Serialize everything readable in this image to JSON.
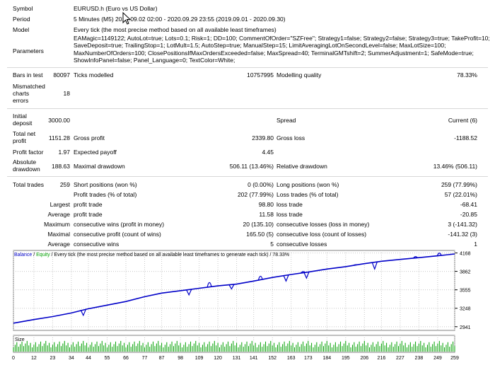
{
  "header": {
    "symbol_label": "Symbol",
    "symbol_value": "EURUSD.h (Euro vs US Dollar)",
    "period_label": "Period",
    "period_value": "5 Minutes (M5) 2019.09.02 02:00 - 2020.09.29 23:55 (2019.09.01 - 2020.09.30)",
    "model_label": "Model",
    "model_value": "Every tick (the most precise method based on all available least timeframes)",
    "parameters_label": "Parameters",
    "parameters_value": "EAMagic=1149122; AutoLot=true; Lots=0.1; Risk=1; DD=100; CommentOfOrder=\"SZFree\"; Strategy1=false; Strategy2=false; Strategy3=true; TakeProfit=10; SaveDeposit=true; TrailingStop=1; LotMult=1.5; AutoStep=true; ManualStep=15; LimitAveragingLotOnSecondLevel=false; MaxLotSize=100; MaxNumberOfOrders=100; ClosePositionsIfMaxOrdersExceeded=false; MaxSpread=40; TerminalGMTshift=2; SummerAdjustment=1; SafeMode=true; ShowInfoPanel=false; Panel_Language=0; TextColor=White;"
  },
  "stats": {
    "bars_label": "Bars in test",
    "bars_value": "80097",
    "ticks_label": "Ticks modelled",
    "ticks_value": "10757995",
    "quality_label": "Modelling quality",
    "quality_value": "78.33%",
    "mismatch_label": "Mismatched\ncharts\nerrors",
    "mismatch_value": "18",
    "initial_label": "Initial\ndeposit",
    "initial_value": "3000.00",
    "spread_label": "Spread",
    "spread_value": "Current (6)",
    "netprofit_label": "Total net\nprofit",
    "netprofit_value": "1151.28",
    "grossprofit_label": "Gross profit",
    "grossprofit_value": "2339.80",
    "grossloss_label": "Gross loss",
    "grossloss_value": "-1188.52",
    "pf_label": "Profit factor",
    "pf_value": "1.97",
    "ep_label": "Expected payoff",
    "ep_value": "4.45",
    "absdd_label": "Absolute\ndrawdown",
    "absdd_value": "188.63",
    "maxdd_label": "Maximal drawdown",
    "maxdd_value": "506.11 (13.46%)",
    "reldd_label": "Relative drawdown",
    "reldd_value": "13.46% (506.11)",
    "trades_label": "Total trades",
    "trades_value": "259",
    "short_label": "Short positions (won %)",
    "short_value": "0 (0.00%)",
    "long_label": "Long positions (won %)",
    "long_value": "259 (77.99%)",
    "pt_label": "Profit trades (% of total)",
    "pt_value": "202 (77.99%)",
    "lt_label": "Loss trades (% of total)",
    "lt_value": "57 (22.01%)",
    "largest_label": "Largest",
    "lp_label": "profit trade",
    "lp_value": "98.80",
    "ll_label": "loss trade",
    "ll_value": "-68.41",
    "average_label": "Average",
    "ap_label": "profit trade",
    "ap_value": "11.58",
    "al_label": "loss trade",
    "al_value": "-20.85",
    "maximum_label": "Maximum",
    "mcw_label": "consecutive wins (profit in money)",
    "mcw_value": "20 (135.10)",
    "mcl_label": "consecutive losses (loss in money)",
    "mcl_value": "3 (-141.32)",
    "maximal_label": "Maximal",
    "mcp_label": "consecutive profit (count of wins)",
    "mcp_value": "165.50 (5)",
    "mcll_label": "consecutive loss (count of losses)",
    "mcll_value": "-141.32 (3)",
    "average2_label": "Average",
    "acw_label": "consecutive wins",
    "acw_value": "5",
    "acl_label": "consecutive losses",
    "acl_value": "1"
  },
  "chart_data": {
    "type": "line",
    "title_balance": "Balance",
    "title_sep": " / ",
    "title_equity": "Equity",
    "title_rest": " / Every tick (the most precise method based on all available least timeframes to generate each tick) / 78.33%",
    "y_ticks": [
      "4168",
      "3862",
      "3555",
      "3248",
      "2941"
    ],
    "y_tick_values": [
      4168,
      3862,
      3555,
      3248,
      2941
    ],
    "ylim": [
      2880,
      4210
    ],
    "x_ticks": [
      "0",
      "12",
      "23",
      "34",
      "44",
      "55",
      "66",
      "77",
      "87",
      "98",
      "109",
      "120",
      "131",
      "141",
      "152",
      "163",
      "173",
      "184",
      "195",
      "206",
      "216",
      "227",
      "238",
      "249",
      "259"
    ],
    "xlim": [
      0,
      259
    ],
    "size_label": "Size",
    "series": [
      {
        "name": "Balance",
        "color": "#0000c8",
        "x": [
          0,
          12,
          23,
          34,
          44,
          55,
          66,
          77,
          87,
          98,
          109,
          120,
          131,
          141,
          152,
          163,
          173,
          184,
          195,
          206,
          216,
          227,
          238,
          249,
          259
        ],
        "values": [
          3000,
          3060,
          3110,
          3170,
          3240,
          3300,
          3360,
          3440,
          3500,
          3540,
          3580,
          3620,
          3650,
          3700,
          3760,
          3810,
          3850,
          3900,
          3940,
          3990,
          4030,
          4060,
          4090,
          4120,
          4151
        ]
      }
    ],
    "equity_dips": [
      {
        "x": 41,
        "value": 3130
      },
      {
        "x": 103,
        "value": 3470
      },
      {
        "x": 128,
        "value": 3570
      },
      {
        "x": 160,
        "value": 3700
      },
      {
        "x": 172,
        "value": 3750
      },
      {
        "x": 212,
        "value": 3900
      }
    ],
    "equity_spikes": [
      {
        "x": 115,
        "value": 3700
      },
      {
        "x": 145,
        "value": 3790
      },
      {
        "x": 170,
        "value": 3830
      },
      {
        "x": 201,
        "value": 3930
      },
      {
        "x": 236,
        "value": 4080
      },
      {
        "x": 250,
        "value": 4160
      }
    ]
  },
  "colors": {
    "balance": "#0000c8",
    "equity": "#00a000",
    "size_bars": "#00a000",
    "grid": "#c8c8c8",
    "border": "#808080"
  }
}
